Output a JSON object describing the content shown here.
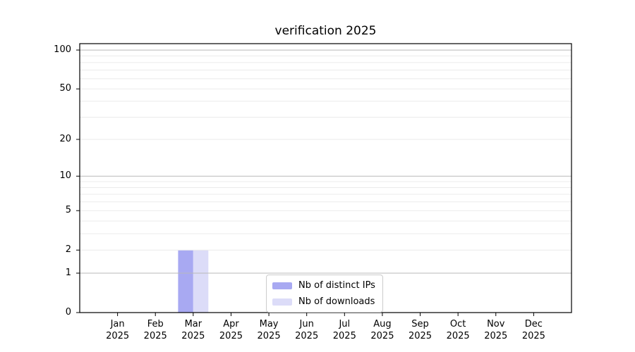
{
  "chart_data": {
    "type": "bar",
    "title": "verification 2025",
    "xlabel": "",
    "ylabel": "",
    "categories": [
      "Jan",
      "Feb",
      "Mar",
      "Apr",
      "May",
      "Jun",
      "Jul",
      "Aug",
      "Sep",
      "Oct",
      "Nov",
      "Dec"
    ],
    "category_year": "2025",
    "series": [
      {
        "name": "Nb of distinct IPs",
        "color": "#a8a9f2",
        "values": [
          0,
          0,
          2,
          0,
          0,
          0,
          0,
          0,
          0,
          0,
          0,
          0
        ]
      },
      {
        "name": "Nb of downloads",
        "color": "#dcdcf8",
        "values": [
          0,
          0,
          2,
          0,
          0,
          0,
          0,
          0,
          0,
          0,
          0,
          0
        ]
      }
    ],
    "y_axis": {
      "scale": "log1p",
      "tick_values": [
        0,
        1,
        2,
        5,
        10,
        20,
        50,
        100
      ],
      "tick_labels": [
        "0",
        "1",
        "2",
        "5",
        "10",
        "20",
        "50",
        "100"
      ],
      "ylim": [
        0,
        112
      ],
      "major_gridlines": [
        1,
        10,
        100
      ],
      "minor_gridlines": [
        2,
        3,
        4,
        5,
        6,
        7,
        8,
        9,
        20,
        30,
        40,
        50,
        60,
        70,
        80,
        90
      ]
    },
    "legend": {
      "position": "lower center",
      "entries": [
        "Nb of distinct IPs",
        "Nb of downloads"
      ]
    },
    "grid": true
  },
  "colors": {
    "background": "#ffffff",
    "spine": "#000000",
    "tick": "#000000",
    "text": "#000000",
    "major_grid": "#b9b9b9",
    "minor_grid": "#ebebeb",
    "legend_border": "#cccccc",
    "legend_background": "#ffffff"
  }
}
